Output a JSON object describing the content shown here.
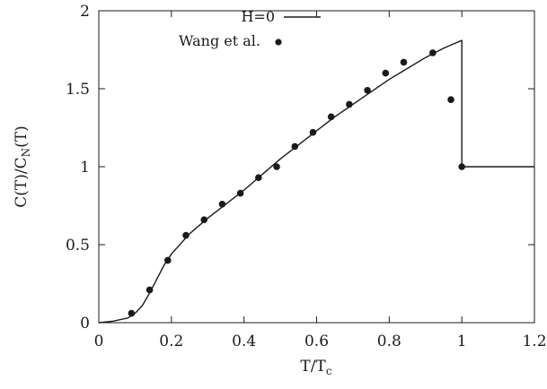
{
  "chart_data": {
    "type": "line",
    "xlim": [
      0,
      1.2
    ],
    "ylim": [
      0,
      2
    ],
    "x_ticks": [
      "0",
      "0.2",
      "0.4",
      "0.6",
      "0.8",
      "1",
      "1.2"
    ],
    "y_ticks": [
      "0",
      "0.5",
      "1",
      "1.5",
      "2"
    ],
    "xlabel": {
      "main": "T/T",
      "sub": "c"
    },
    "ylabel": {
      "p1": "C(T)/C",
      "sub": "N",
      "p2": "(T)"
    },
    "legend_position": "top-center",
    "series": [
      {
        "name": "H=0",
        "style": "line",
        "color": "#1a1a1a",
        "x": [
          0,
          0.04,
          0.08,
          0.1,
          0.12,
          0.14,
          0.16,
          0.18,
          0.2,
          0.25,
          0.3,
          0.35,
          0.4,
          0.45,
          0.5,
          0.55,
          0.6,
          0.65,
          0.7,
          0.75,
          0.8,
          0.85,
          0.9,
          0.95,
          1.0,
          1.0,
          1.2
        ],
        "y": [
          0,
          0.01,
          0.03,
          0.06,
          0.11,
          0.19,
          0.28,
          0.37,
          0.44,
          0.57,
          0.67,
          0.76,
          0.85,
          0.95,
          1.05,
          1.14,
          1.23,
          1.32,
          1.4,
          1.48,
          1.56,
          1.63,
          1.7,
          1.76,
          1.81,
          1.0,
          1.0
        ]
      },
      {
        "name": "Wang et al.",
        "style": "points",
        "color": "#1a1a1a",
        "x": [
          0.09,
          0.14,
          0.19,
          0.24,
          0.29,
          0.34,
          0.39,
          0.44,
          0.49,
          0.54,
          0.59,
          0.64,
          0.69,
          0.74,
          0.79,
          0.84,
          0.92,
          0.97,
          1.0
        ],
        "y": [
          0.06,
          0.21,
          0.4,
          0.56,
          0.66,
          0.76,
          0.83,
          0.93,
          1.0,
          1.13,
          1.22,
          1.32,
          1.4,
          1.49,
          1.6,
          1.67,
          1.73,
          1.43,
          1.0
        ]
      }
    ]
  }
}
